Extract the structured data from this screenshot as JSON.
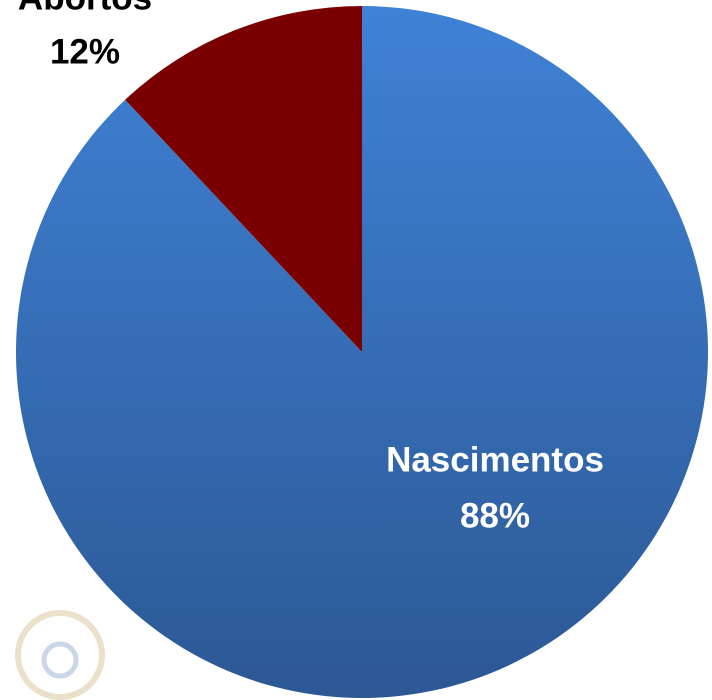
{
  "chart_data": {
    "type": "pie",
    "categories": [
      "Nascimentos",
      "Abortos"
    ],
    "values": [
      88,
      12
    ],
    "value_labels": [
      "88%",
      "12%"
    ],
    "colors": [
      "#3a74c2",
      "#7a0000"
    ]
  }
}
